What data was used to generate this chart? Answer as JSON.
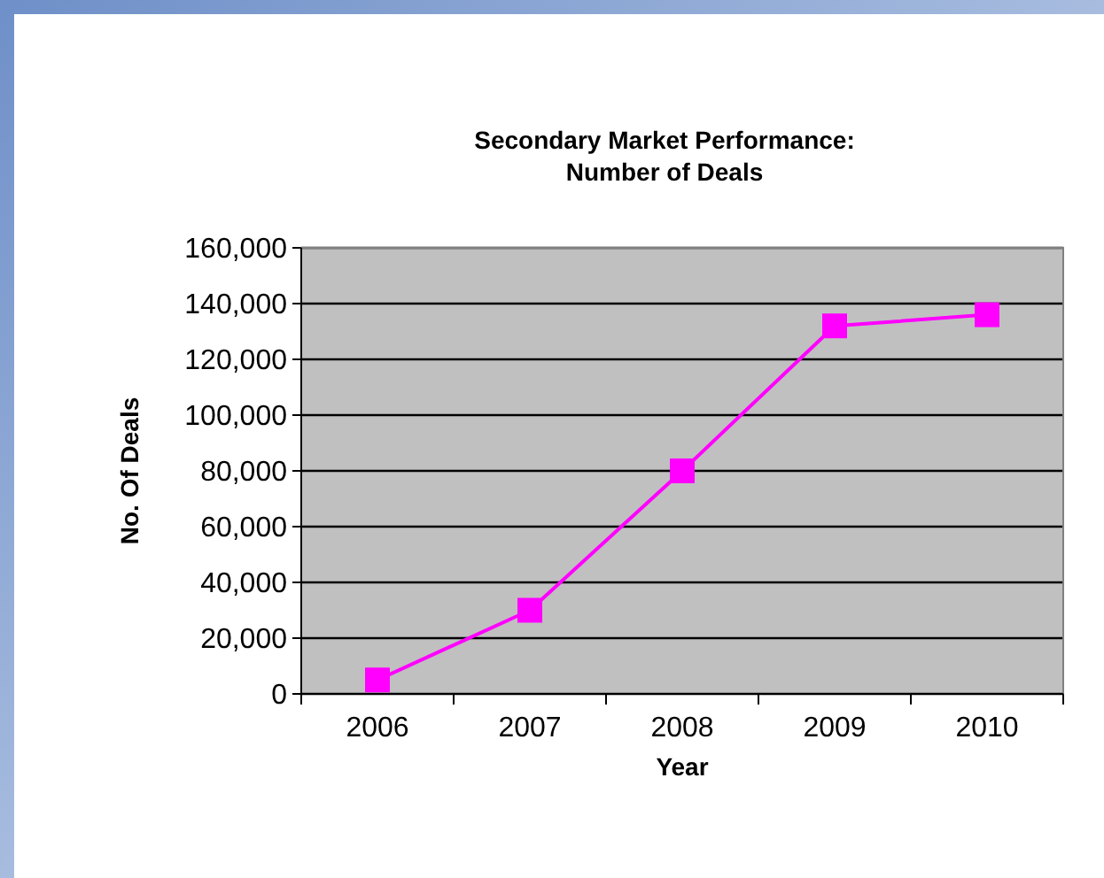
{
  "chart_data": {
    "type": "line",
    "title": "Secondary Market Performance:\nNumber of Deals",
    "xlabel": "Year",
    "ylabel": "No. Of Deals",
    "categories": [
      "2006",
      "2007",
      "2008",
      "2009",
      "2010"
    ],
    "series": [
      {
        "color": "#ff00ff",
        "values": [
          5000,
          30000,
          80000,
          132000,
          136000
        ]
      }
    ],
    "ylim": [
      0,
      160000
    ],
    "yticks": [
      {
        "value": 0,
        "label": "0"
      },
      {
        "value": 20000,
        "label": "20,000"
      },
      {
        "value": 40000,
        "label": "40,000"
      },
      {
        "value": 60000,
        "label": "60,000"
      },
      {
        "value": 80000,
        "label": "80,000"
      },
      {
        "value": 100000,
        "label": "100,000"
      },
      {
        "value": 120000,
        "label": "120,000"
      },
      {
        "value": 140000,
        "label": "140,000"
      },
      {
        "value": 160000,
        "label": "160,000"
      }
    ],
    "grid": "y",
    "marker": "square"
  }
}
